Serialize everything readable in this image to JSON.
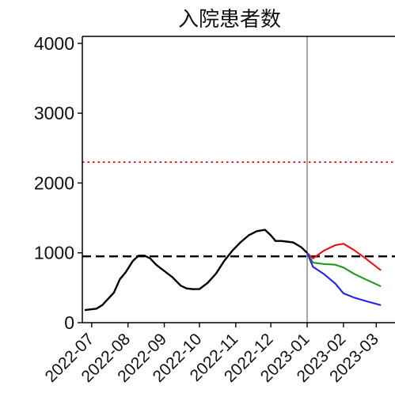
{
  "chart_data": {
    "type": "line",
    "title": "入院患者数",
    "xlabel": "",
    "ylabel": "",
    "ylim": [
      0,
      4100
    ],
    "yticks": [
      0,
      1000,
      2000,
      3000,
      4000
    ],
    "xticks": [
      "2022-07",
      "2022-08",
      "2022-09",
      "2022-10",
      "2022-11",
      "2022-12",
      "2023-01",
      "2023-02",
      "2023-03"
    ],
    "grid": false,
    "legend": "none",
    "reference_lines": [
      {
        "y": 950,
        "style": "dashed",
        "color": "#000000"
      },
      {
        "y": 2300,
        "style": "dotted",
        "color": "#ee2222"
      },
      {
        "x": "2023-01-01",
        "style": "solid",
        "color": "#777777",
        "orientation": "vertical"
      }
    ],
    "series": [
      {
        "color": "#000000",
        "x": [
          "2022-06-25",
          "2022-07-05",
          "2022-07-10",
          "2022-07-20",
          "2022-07-25",
          "2022-07-30",
          "2022-08-05",
          "2022-08-10",
          "2022-08-15",
          "2022-08-20",
          "2022-08-25",
          "2022-09-01",
          "2022-09-08",
          "2022-09-15",
          "2022-09-20",
          "2022-09-25",
          "2022-10-01",
          "2022-10-08",
          "2022-10-15",
          "2022-10-22",
          "2022-10-29",
          "2022-11-05",
          "2022-11-12",
          "2022-11-19",
          "2022-11-26",
          "2022-12-01",
          "2022-12-05",
          "2022-12-10",
          "2022-12-20",
          "2022-12-27",
          "2023-01-01"
        ],
        "y": [
          180,
          200,
          250,
          430,
          620,
          720,
          880,
          960,
          960,
          920,
          830,
          740,
          650,
          530,
          490,
          480,
          480,
          570,
          700,
          880,
          1030,
          1150,
          1250,
          1310,
          1330,
          1250,
          1170,
          1170,
          1150,
          1080,
          1000
        ]
      },
      {
        "color": "#ee1111",
        "x": [
          "2023-01-01",
          "2023-01-06",
          "2023-01-15",
          "2023-01-25",
          "2023-02-01",
          "2023-02-10",
          "2023-02-20",
          "2023-03-05"
        ],
        "y": [
          1000,
          920,
          1030,
          1110,
          1130,
          1040,
          920,
          750
        ]
      },
      {
        "color": "#229922",
        "x": [
          "2023-01-01",
          "2023-01-06",
          "2023-01-15",
          "2023-01-25",
          "2023-02-01",
          "2023-02-10",
          "2023-02-20",
          "2023-03-05"
        ],
        "y": [
          1000,
          860,
          840,
          830,
          790,
          700,
          620,
          520
        ]
      },
      {
        "color": "#2222ee",
        "x": [
          "2023-01-01",
          "2023-01-06",
          "2023-01-15",
          "2023-01-25",
          "2023-02-01",
          "2023-02-10",
          "2023-02-20",
          "2023-03-05"
        ],
        "y": [
          1000,
          800,
          700,
          560,
          420,
          360,
          310,
          250
        ]
      }
    ]
  }
}
